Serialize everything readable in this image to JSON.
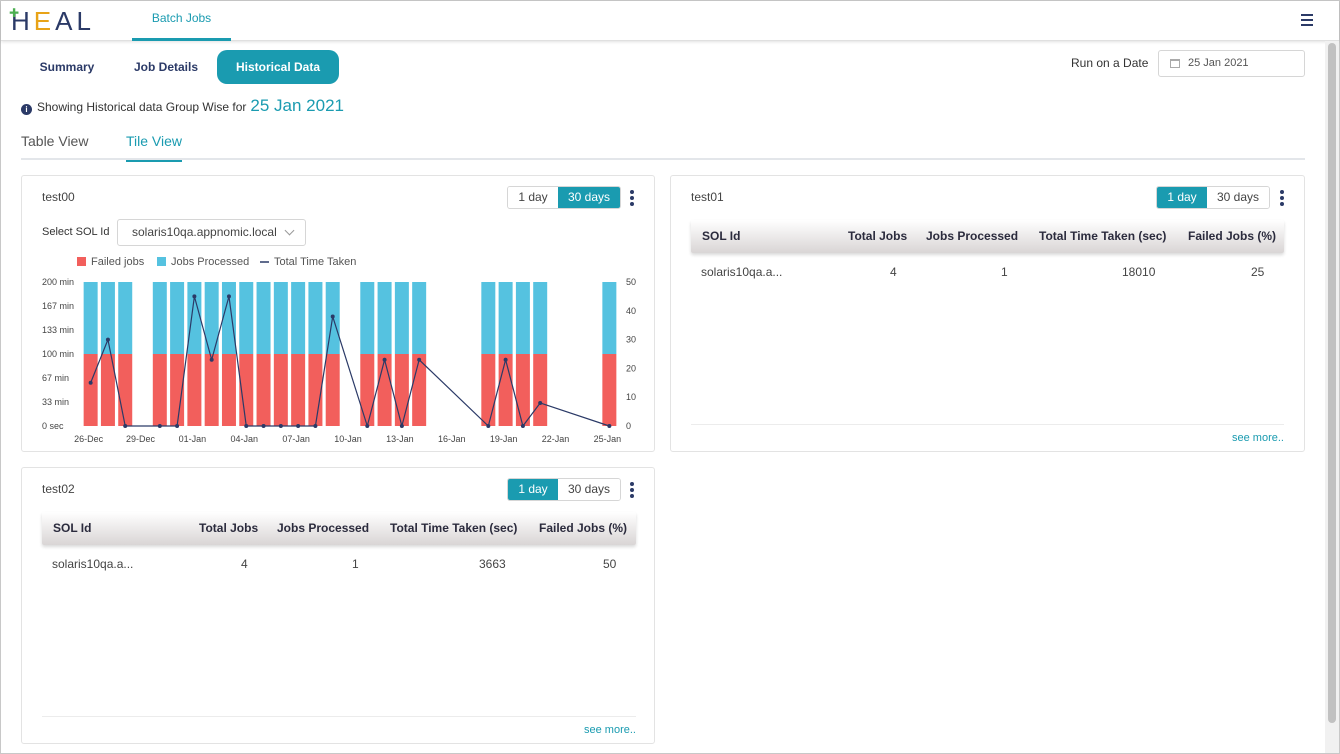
{
  "app": {
    "logo": "HEAL",
    "nav_tab": "Batch Jobs"
  },
  "main_tabs": [
    "Summary",
    "Job Details",
    "Historical Data"
  ],
  "run_on_date": {
    "label": "Run on a Date",
    "value": "25 Jan 2021"
  },
  "info": {
    "text": "Showing Historical data Group Wise for",
    "date": "25 Jan 2021"
  },
  "view_tabs": [
    "Table View",
    "Tile View"
  ],
  "toggle": {
    "day": "1 day",
    "month": "30 days"
  },
  "see_more": "see more..",
  "table_headers": [
    "SOL Id",
    "Total Jobs",
    "Jobs Processed",
    "Total Time Taken (sec)",
    "Failed Jobs (%)"
  ],
  "cards": {
    "test00": {
      "title": "test00",
      "select_label": "Select SOL Id",
      "select_value": "solaris10qa.appnomic.local"
    },
    "test01": {
      "title": "test01",
      "row": {
        "sol_id": "solaris10qa.a...",
        "total_jobs": "4",
        "jobs_processed": "1",
        "total_time": "18010",
        "failed_pct": "25"
      }
    },
    "test02": {
      "title": "test02",
      "row": {
        "sol_id": "solaris10qa.a...",
        "total_jobs": "4",
        "jobs_processed": "1",
        "total_time": "3663",
        "failed_pct": "50"
      }
    }
  },
  "colors": {
    "accent": "#1a9bb0",
    "failed": "#f25f5c",
    "processed": "#55c2e0",
    "line": "#2b3a67"
  },
  "chart_data": {
    "type": "bar",
    "legend": [
      "Failed jobs",
      "Jobs Processed",
      "Total Time Taken"
    ],
    "legend_position": "top-left",
    "y_left_ticks": [
      "0 sec",
      "33 min",
      "67 min",
      "100 min",
      "133 min",
      "167 min",
      "200 min"
    ],
    "y_left_range": [
      0,
      200
    ],
    "y_right_ticks": [
      "0",
      "10",
      "20",
      "30",
      "40",
      "50"
    ],
    "y_right_range": [
      0,
      50
    ],
    "x_ticks": [
      "26-Dec",
      "29-Dec",
      "01-Jan",
      "04-Jan",
      "07-Jan",
      "10-Jan",
      "13-Jan",
      "16-Jan",
      "19-Jan",
      "22-Jan",
      "25-Jan"
    ],
    "x_tick_index": [
      0,
      3,
      6,
      9,
      12,
      15,
      18,
      21,
      24,
      27,
      30
    ],
    "num_days": 31,
    "days_with_data": [
      0,
      1,
      2,
      4,
      5,
      6,
      7,
      8,
      9,
      10,
      11,
      12,
      13,
      14,
      16,
      17,
      18,
      19,
      23,
      24,
      25,
      26,
      30
    ],
    "failed_jobs_pct": [
      50,
      50,
      50,
      50,
      50,
      50,
      50,
      50,
      50,
      50,
      50,
      50,
      50,
      50,
      50,
      50,
      50,
      50,
      50,
      50,
      50,
      50,
      50
    ],
    "jobs_processed_pct": [
      50,
      50,
      50,
      50,
      50,
      50,
      50,
      50,
      50,
      50,
      50,
      50,
      50,
      50,
      50,
      50,
      50,
      50,
      50,
      50,
      50,
      50,
      50
    ],
    "total_time_series": [
      {
        "day": 0,
        "v": 15
      },
      {
        "day": 1,
        "v": 30
      },
      {
        "day": 2,
        "v": 0
      },
      {
        "day": 4,
        "v": 0
      },
      {
        "day": 5,
        "v": 0
      },
      {
        "day": 6,
        "v": 45
      },
      {
        "day": 7,
        "v": 23
      },
      {
        "day": 8,
        "v": 45
      },
      {
        "day": 9,
        "v": 0
      },
      {
        "day": 10,
        "v": 0
      },
      {
        "day": 11,
        "v": 0
      },
      {
        "day": 12,
        "v": 0
      },
      {
        "day": 13,
        "v": 0
      },
      {
        "day": 14,
        "v": 38
      },
      {
        "day": 16,
        "v": 0
      },
      {
        "day": 17,
        "v": 23
      },
      {
        "day": 18,
        "v": 0
      },
      {
        "day": 19,
        "v": 23
      },
      {
        "day": 23,
        "v": 0
      },
      {
        "day": 24,
        "v": 23
      },
      {
        "day": 25,
        "v": 0
      },
      {
        "day": 26,
        "v": 8
      },
      {
        "day": 30,
        "v": 0
      }
    ]
  }
}
